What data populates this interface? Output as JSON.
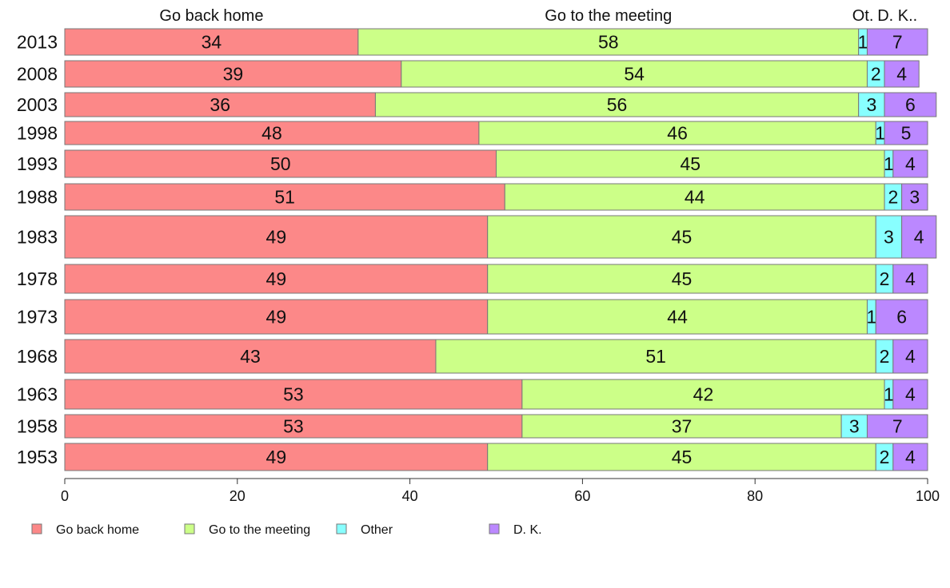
{
  "chart_data": {
    "type": "bar",
    "orientation": "horizontal",
    "stacked": true,
    "categories": [
      "2013",
      "2008",
      "2003",
      "1998",
      "1993",
      "1988",
      "1983",
      "1978",
      "1973",
      "1968",
      "1963",
      "1958",
      "1953"
    ],
    "series": [
      {
        "name": "Go back home",
        "header": "Go back home",
        "color": "#fc8888",
        "values": [
          34,
          39,
          36,
          48,
          50,
          51,
          49,
          49,
          49,
          43,
          53,
          53,
          49
        ]
      },
      {
        "name": "Go to the meeting",
        "header": "Go to the meeting",
        "color": "#ccff88",
        "values": [
          58,
          54,
          56,
          46,
          45,
          44,
          45,
          45,
          44,
          51,
          42,
          37,
          45
        ]
      },
      {
        "name": "Other",
        "header": "Ot.",
        "color": "#88ffff",
        "values": [
          1,
          2,
          3,
          1,
          1,
          2,
          3,
          2,
          1,
          2,
          1,
          3,
          2
        ]
      },
      {
        "name": "D. K.",
        "header": "D. K..",
        "color": "#bb88ff",
        "values": [
          7,
          4,
          6,
          5,
          4,
          3,
          4,
          4,
          6,
          4,
          4,
          7,
          4
        ]
      }
    ],
    "xlim": [
      0,
      100
    ],
    "xticks": [
      0,
      20,
      40,
      60,
      80,
      100
    ],
    "title": "",
    "xlabel": "",
    "ylabel": "",
    "grid": false,
    "legend_position": "bottom-left"
  }
}
